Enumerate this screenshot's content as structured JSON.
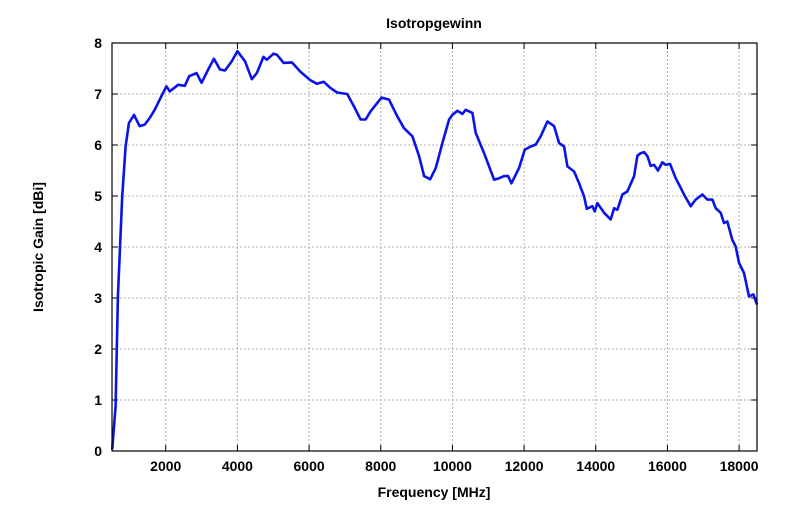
{
  "chart_data": {
    "type": "line",
    "title": "Isotropgewinn",
    "xlabel": "Frequency [MHz]",
    "ylabel": "Isotropic Gain [dBi]",
    "xlim": [
      500,
      18500
    ],
    "ylim": [
      0,
      8
    ],
    "xticks": [
      2000,
      4000,
      6000,
      8000,
      10000,
      12000,
      14000,
      16000,
      18000
    ],
    "yticks": [
      0,
      1,
      2,
      3,
      4,
      5,
      6,
      7,
      8
    ],
    "grid": true,
    "line_color": "#0a14e6",
    "series": [
      {
        "name": "Isotropic Gain",
        "x": [
          505,
          600,
          666,
          786,
          880,
          973,
          1113,
          1271,
          1412,
          1552,
          1692,
          1832,
          2019,
          2112,
          2346,
          2532,
          2654,
          2860,
          3000,
          3186,
          3345,
          3513,
          3653,
          3840,
          3999,
          4214,
          4400,
          4540,
          4727,
          4821,
          5008,
          5101,
          5288,
          5521,
          5755,
          6035,
          6222,
          6409,
          6596,
          6783,
          7063,
          7250,
          7437,
          7577,
          7717,
          8024,
          8230,
          8463,
          8650,
          8883,
          9070,
          9210,
          9379,
          9535,
          9721,
          9907,
          10000,
          10140,
          10279,
          10372,
          10558,
          10651,
          10884,
          11023,
          11163,
          11302,
          11442,
          11553,
          11646,
          11860,
          12019,
          12186,
          12326,
          12465,
          12651,
          12837,
          12977,
          13116,
          13209,
          13395,
          13535,
          13674,
          13749,
          13907,
          13972,
          14046,
          14232,
          14418,
          14511,
          14604,
          14743,
          14883,
          15069,
          15162,
          15255,
          15348,
          15441,
          15534,
          15627,
          15738,
          15859,
          15952,
          16073,
          16231,
          16370,
          16463,
          16650,
          16790,
          16975,
          17115,
          17254,
          17347,
          17486,
          17580,
          17672,
          17812,
          17905,
          17998,
          18137,
          18277,
          18400,
          18500
        ],
        "y": [
          0.03,
          0.88,
          3.03,
          4.99,
          5.97,
          6.43,
          6.59,
          6.37,
          6.4,
          6.53,
          6.69,
          6.89,
          7.15,
          7.05,
          7.18,
          7.16,
          7.35,
          7.41,
          7.22,
          7.48,
          7.69,
          7.48,
          7.46,
          7.64,
          7.84,
          7.64,
          7.29,
          7.41,
          7.73,
          7.67,
          7.79,
          7.77,
          7.61,
          7.62,
          7.44,
          7.27,
          7.2,
          7.24,
          7.12,
          7.03,
          7.0,
          6.76,
          6.5,
          6.5,
          6.66,
          6.93,
          6.89,
          6.56,
          6.33,
          6.17,
          5.78,
          5.39,
          5.33,
          5.55,
          6.04,
          6.5,
          6.59,
          6.67,
          6.61,
          6.69,
          6.63,
          6.24,
          5.84,
          5.58,
          5.32,
          5.35,
          5.39,
          5.39,
          5.25,
          5.55,
          5.91,
          5.97,
          6.01,
          6.17,
          6.46,
          6.37,
          6.04,
          5.97,
          5.58,
          5.48,
          5.25,
          4.99,
          4.75,
          4.8,
          4.7,
          4.86,
          4.67,
          4.54,
          4.76,
          4.73,
          5.03,
          5.09,
          5.39,
          5.79,
          5.84,
          5.86,
          5.78,
          5.59,
          5.61,
          5.5,
          5.66,
          5.61,
          5.63,
          5.35,
          5.16,
          5.03,
          4.8,
          4.93,
          5.03,
          4.93,
          4.93,
          4.76,
          4.67,
          4.47,
          4.5,
          4.14,
          4.01,
          3.69,
          3.49,
          3.03,
          3.07,
          2.87
        ]
      }
    ]
  }
}
